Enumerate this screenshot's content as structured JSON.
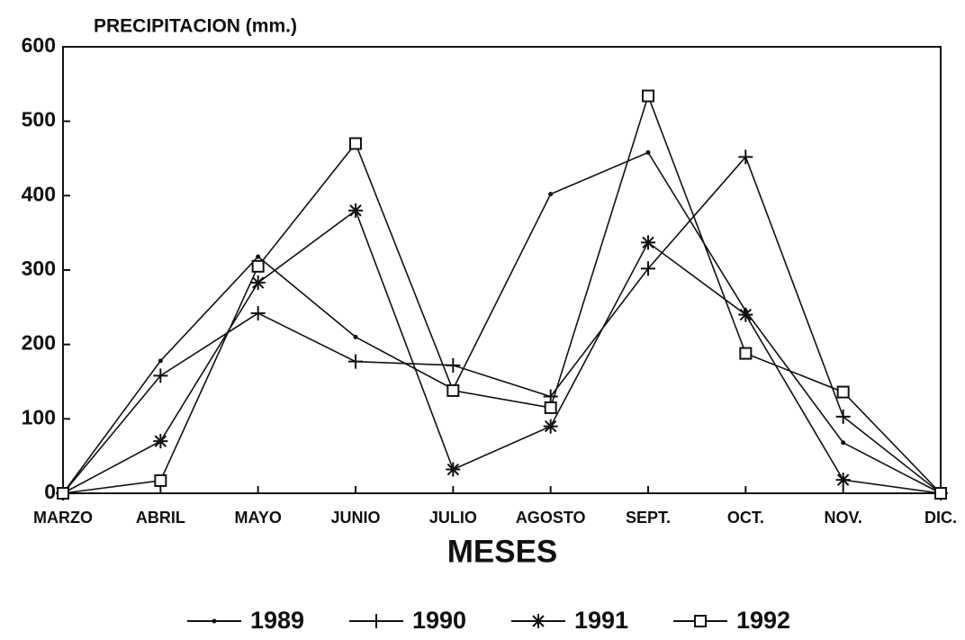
{
  "chart_data": {
    "type": "line",
    "title": "PRECIPITACION (mm.)",
    "x_label": "MESES",
    "categories": [
      "MARZO",
      "ABRIL",
      "MAYO",
      "JUNIO",
      "JULIO",
      "AGOSTO",
      "SEPT.",
      "OCT.",
      "NOV.",
      "DIC."
    ],
    "series": [
      {
        "name": "1989",
        "color": "#111111",
        "marker": "dot",
        "values": [
          0,
          178,
          318,
          210,
          140,
          402,
          458,
          245,
          68,
          0
        ]
      },
      {
        "name": "1990",
        "color": "#111111",
        "marker": "plus",
        "values": [
          0,
          158,
          242,
          177,
          172,
          130,
          302,
          452,
          103,
          0
        ]
      },
      {
        "name": "1991",
        "color": "#111111",
        "marker": "star",
        "values": [
          0,
          70,
          283,
          380,
          32,
          90,
          337,
          240,
          18,
          0
        ]
      },
      {
        "name": "1992",
        "color": "#111111",
        "marker": "square",
        "values": [
          0,
          17,
          305,
          470,
          138,
          115,
          534,
          188,
          136,
          0
        ]
      }
    ],
    "ylim": [
      0,
      600
    ],
    "yticks": [
      0,
      100,
      200,
      300,
      400,
      500,
      600
    ],
    "grid": false,
    "legend": "bottom"
  }
}
